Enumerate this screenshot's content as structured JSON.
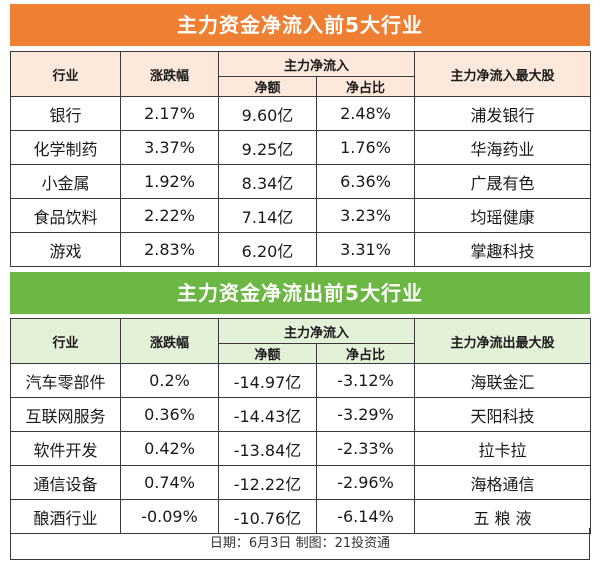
{
  "inflow": {
    "title": "主力资金净流入前5大行业",
    "headers": {
      "industry": "行业",
      "change": "涨跌幅",
      "net_group": "主力净流入",
      "net_amount": "净额",
      "net_ratio": "净占比",
      "top_stock": "主力净流入最大股"
    },
    "rows": [
      {
        "industry": "银行",
        "change": "2.17%",
        "amount": "9.60亿",
        "ratio": "2.48%",
        "stock": "浦发银行"
      },
      {
        "industry": "化学制药",
        "change": "3.37%",
        "amount": "9.25亿",
        "ratio": "1.76%",
        "stock": "华海药业"
      },
      {
        "industry": "小金属",
        "change": "1.92%",
        "amount": "8.34亿",
        "ratio": "6.36%",
        "stock": "广晟有色"
      },
      {
        "industry": "食品饮料",
        "change": "2.22%",
        "amount": "7.14亿",
        "ratio": "3.23%",
        "stock": "均瑶健康"
      },
      {
        "industry": "游戏",
        "change": "2.83%",
        "amount": "6.20亿",
        "ratio": "3.31%",
        "stock": "掌趣科技"
      }
    ]
  },
  "outflow": {
    "title": "主力资金净流出前5大行业",
    "headers": {
      "industry": "行业",
      "change": "涨跌幅",
      "net_group": "主力净流入",
      "net_amount": "净额",
      "net_ratio": "净占比",
      "top_stock": "主力净流出最大股"
    },
    "rows": [
      {
        "industry": "汽车零部件",
        "change": "0.2%",
        "amount": "-14.97亿",
        "ratio": "-3.12%",
        "stock": "海联金汇"
      },
      {
        "industry": "互联网服务",
        "change": "0.36%",
        "amount": "-14.43亿",
        "ratio": "-3.29%",
        "stock": "天阳科技"
      },
      {
        "industry": "软件开发",
        "change": "0.42%",
        "amount": "-13.84亿",
        "ratio": "-2.33%",
        "stock": "拉卡拉"
      },
      {
        "industry": "通信设备",
        "change": "0.74%",
        "amount": "-12.22亿",
        "ratio": "-2.96%",
        "stock": "海格通信"
      },
      {
        "industry": "酿酒行业",
        "change": "-0.09%",
        "amount": "-10.76亿",
        "ratio": "-6.14%",
        "stock": "五 粮 液"
      }
    ]
  },
  "footer": "日期：6月3日  制图：21投资通"
}
